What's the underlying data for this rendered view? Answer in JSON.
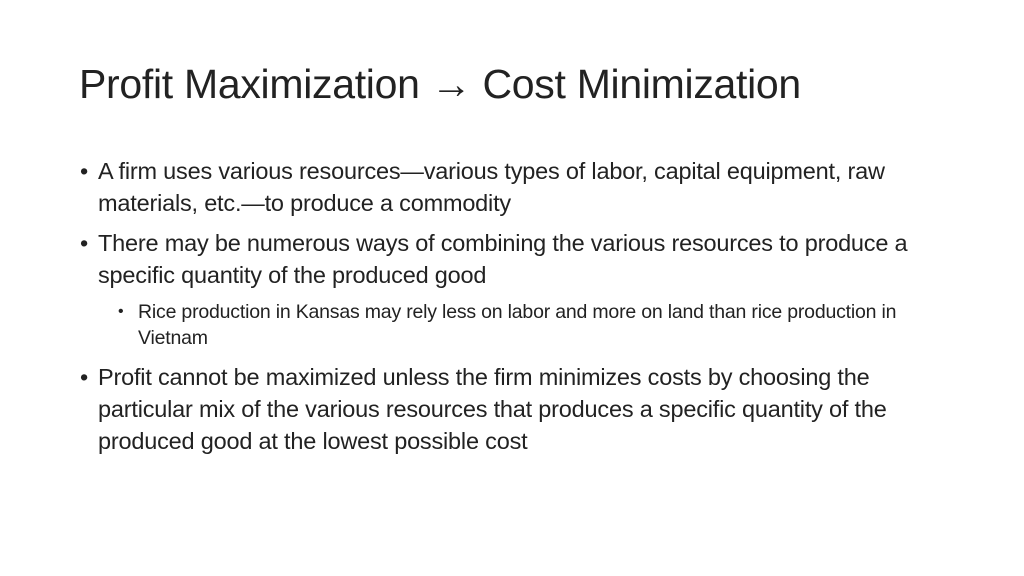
{
  "slide": {
    "title": "Profit Maximization → Cost Minimization",
    "bullet_char": "•",
    "bullets": [
      {
        "text": "A firm uses various resources—various types of labor, capital equipment, raw materials, etc.—to produce a commodity"
      },
      {
        "text": "There may be numerous ways of combining the various resources to produce a specific quantity of the produced good",
        "sub": [
          {
            "text": "Rice production in Kansas may rely less on labor and more on land than rice production in Vietnam"
          }
        ]
      },
      {
        "text": "Profit cannot be maximized unless the firm minimizes costs by choosing the particular mix of the various resources that produces a specific quantity of the produced good at the lowest possible cost"
      }
    ]
  }
}
